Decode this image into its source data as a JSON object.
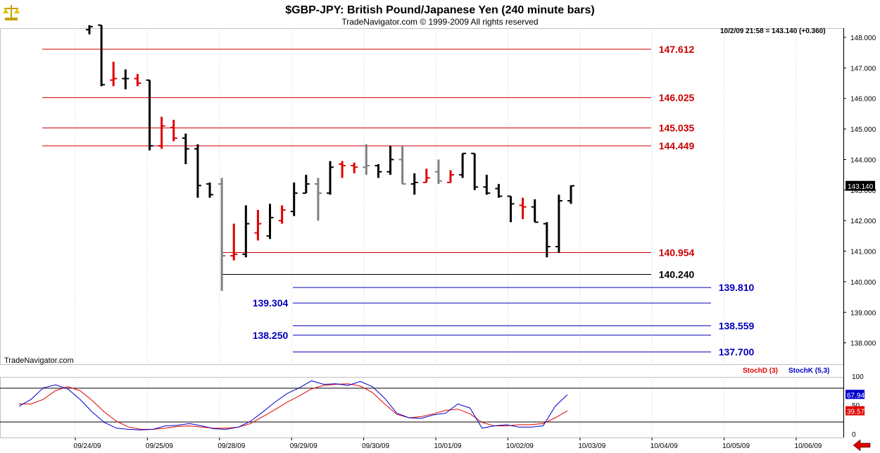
{
  "header": {
    "title": "$GBP-JPY:  British Pound/Japanese Yen  (240 minute bars)",
    "subtitle": "TradeNavigator.com © 1999-2009 All rights reserved",
    "last_info": "10/2/09 21:58 = 143.140 (+0.360)",
    "watermark": "TradeNavigator.com",
    "logo_icon": "scales-icon",
    "nav_icon": "left-arrow-icon"
  },
  "colors": {
    "bar_up": "#e00000",
    "bar_down": "#000000",
    "bar_gray": "#808080",
    "resistance": "#cc0000",
    "support": "#000000",
    "target": "#0000bb",
    "stochd": "#e00000",
    "stochk": "#0000cc"
  },
  "chart_data": [
    {
      "type": "ohlc",
      "title": "$GBP-JPY:  British Pound/Japanese Yen  (240 minute bars)",
      "x_ticks": [
        "09/24/09",
        "09/25/09",
        "09/28/09",
        "09/29/09",
        "09/30/09",
        "10/01/09",
        "10/02/09",
        "10/03/09",
        "10/04/09",
        "10/05/09",
        "10/06/09"
      ],
      "y_ticks": [
        "138.000",
        "139.000",
        "140.000",
        "141.000",
        "142.000",
        "143.000",
        "144.000",
        "145.000",
        "146.000",
        "147.000",
        "148.000"
      ],
      "ylim": [
        137.3,
        148.3
      ],
      "last_price": "143.140",
      "bars": [
        {
          "o": 148.25,
          "h": 148.4,
          "l": 148.1,
          "c": 148.35,
          "col": "down"
        },
        {
          "o": 148.4,
          "h": 148.4,
          "l": 146.4,
          "c": 146.45,
          "col": "down"
        },
        {
          "o": 146.6,
          "h": 147.2,
          "l": 146.4,
          "c": 146.65,
          "col": "up"
        },
        {
          "o": 146.65,
          "h": 146.95,
          "l": 146.3,
          "c": 146.65,
          "col": "down"
        },
        {
          "o": 146.65,
          "h": 146.8,
          "l": 146.4,
          "c": 146.5,
          "col": "up"
        },
        {
          "o": 146.6,
          "h": 146.6,
          "l": 144.3,
          "c": 144.45,
          "col": "down"
        },
        {
          "o": 144.45,
          "h": 145.4,
          "l": 144.35,
          "c": 145.1,
          "col": "up"
        },
        {
          "o": 145.05,
          "h": 145.3,
          "l": 144.6,
          "c": 144.7,
          "col": "up"
        },
        {
          "o": 144.7,
          "h": 144.85,
          "l": 143.85,
          "c": 144.35,
          "col": "down"
        },
        {
          "o": 144.35,
          "h": 144.5,
          "l": 142.75,
          "c": 143.15,
          "col": "down"
        },
        {
          "o": 143.2,
          "h": 143.25,
          "l": 142.75,
          "c": 142.85,
          "col": "down"
        },
        {
          "o": 143.2,
          "h": 143.4,
          "l": 139.7,
          "c": 140.85,
          "col": "gray"
        },
        {
          "o": 140.85,
          "h": 141.9,
          "l": 140.7,
          "c": 140.9,
          "col": "up"
        },
        {
          "o": 140.9,
          "h": 142.5,
          "l": 140.8,
          "c": 141.9,
          "col": "down"
        },
        {
          "o": 141.6,
          "h": 142.35,
          "l": 141.35,
          "c": 141.9,
          "col": "up"
        },
        {
          "o": 141.5,
          "h": 142.55,
          "l": 141.4,
          "c": 142.1,
          "col": "down"
        },
        {
          "o": 142.0,
          "h": 142.5,
          "l": 141.9,
          "c": 142.35,
          "col": "up"
        },
        {
          "o": 142.3,
          "h": 143.25,
          "l": 142.15,
          "c": 142.9,
          "col": "down"
        },
        {
          "o": 142.9,
          "h": 143.5,
          "l": 142.9,
          "c": 143.2,
          "col": "down"
        },
        {
          "o": 143.2,
          "h": 143.4,
          "l": 142.0,
          "c": 142.9,
          "col": "gray"
        },
        {
          "o": 142.9,
          "h": 143.95,
          "l": 142.85,
          "c": 143.75,
          "col": "down"
        },
        {
          "o": 143.85,
          "h": 143.95,
          "l": 143.4,
          "c": 143.8,
          "col": "up"
        },
        {
          "o": 143.8,
          "h": 143.9,
          "l": 143.55,
          "c": 143.75,
          "col": "up"
        },
        {
          "o": 143.75,
          "h": 144.5,
          "l": 143.5,
          "c": 143.8,
          "col": "gray"
        },
        {
          "o": 143.8,
          "h": 143.85,
          "l": 143.4,
          "c": 143.6,
          "col": "down"
        },
        {
          "o": 143.6,
          "h": 144.45,
          "l": 143.5,
          "c": 144.0,
          "col": "down"
        },
        {
          "o": 144.0,
          "h": 144.45,
          "l": 143.2,
          "c": 143.2,
          "col": "gray"
        },
        {
          "o": 143.2,
          "h": 143.55,
          "l": 142.85,
          "c": 143.25,
          "col": "down"
        },
        {
          "o": 143.25,
          "h": 143.7,
          "l": 143.25,
          "c": 143.4,
          "col": "up"
        },
        {
          "o": 143.6,
          "h": 144.0,
          "l": 143.2,
          "c": 143.3,
          "col": "gray"
        },
        {
          "o": 143.25,
          "h": 143.65,
          "l": 143.25,
          "c": 143.5,
          "col": "up"
        },
        {
          "o": 143.5,
          "h": 144.2,
          "l": 143.4,
          "c": 144.2,
          "col": "down"
        },
        {
          "o": 144.2,
          "h": 144.2,
          "l": 143.0,
          "c": 143.1,
          "col": "down"
        },
        {
          "o": 143.1,
          "h": 143.5,
          "l": 142.85,
          "c": 142.9,
          "col": "down"
        },
        {
          "o": 143.05,
          "h": 143.2,
          "l": 142.75,
          "c": 142.8,
          "col": "down"
        },
        {
          "o": 142.8,
          "h": 142.8,
          "l": 141.95,
          "c": 142.55,
          "col": "down"
        },
        {
          "o": 142.5,
          "h": 142.75,
          "l": 142.05,
          "c": 142.45,
          "col": "up"
        },
        {
          "o": 142.45,
          "h": 142.7,
          "l": 141.95,
          "c": 141.95,
          "col": "down"
        },
        {
          "o": 141.9,
          "h": 141.95,
          "l": 140.8,
          "c": 141.15,
          "col": "down"
        },
        {
          "o": 141.15,
          "h": 142.85,
          "l": 140.95,
          "c": 142.65,
          "col": "down"
        },
        {
          "o": 142.65,
          "h": 143.15,
          "l": 142.55,
          "c": 143.14,
          "col": "down"
        }
      ],
      "levels": [
        {
          "value": 147.612,
          "label": "147.612",
          "kind": "resistance",
          "span": "full",
          "label_side": "mid"
        },
        {
          "value": 146.025,
          "label": "146.025",
          "kind": "resistance",
          "span": "full",
          "label_side": "mid"
        },
        {
          "value": 145.035,
          "label": "145.035",
          "kind": "resistance",
          "span": "full",
          "label_side": "mid"
        },
        {
          "value": 144.449,
          "label": "144.449",
          "kind": "resistance",
          "span": "full",
          "label_side": "mid"
        },
        {
          "value": 140.954,
          "label": "140.954",
          "kind": "resistance",
          "span": "from-low",
          "label_side": "mid"
        },
        {
          "value": 140.24,
          "label": "140.240",
          "kind": "support",
          "span": "from-low",
          "label_side": "mid"
        },
        {
          "value": 139.81,
          "label": "139.810",
          "kind": "target",
          "span": "right",
          "label_side": "right"
        },
        {
          "value": 139.304,
          "label": "139.304",
          "kind": "target",
          "span": "right",
          "label_side": "left"
        },
        {
          "value": 138.559,
          "label": "138.559",
          "kind": "target",
          "span": "right",
          "label_side": "right"
        },
        {
          "value": 138.25,
          "label": "138.250",
          "kind": "target",
          "span": "right",
          "label_side": "left"
        },
        {
          "value": 137.7,
          "label": "137.700",
          "kind": "target",
          "span": "right",
          "label_side": "right"
        }
      ]
    },
    {
      "type": "line",
      "title": "",
      "ylim": [
        0,
        100
      ],
      "y_ticks": [
        "100",
        "50",
        "0"
      ],
      "series": [
        {
          "name": "StochD (3)",
          "color": "#e00000",
          "values": [
            52,
            52,
            60,
            75,
            82,
            75,
            58,
            38,
            22,
            12,
            8,
            8,
            10,
            13,
            14,
            12,
            10,
            10,
            12,
            18,
            30,
            42,
            55,
            66,
            78,
            84,
            86,
            87,
            83,
            72,
            52,
            34,
            28,
            30,
            35,
            41,
            43,
            35,
            20,
            14,
            14,
            16,
            16,
            18,
            28,
            40
          ]
        },
        {
          "name": "StochK (5,3)",
          "color": "#0000cc",
          "values": [
            48,
            60,
            80,
            85,
            78,
            60,
            38,
            20,
            10,
            8,
            7,
            8,
            14,
            15,
            18,
            14,
            9,
            8,
            12,
            22,
            38,
            55,
            70,
            80,
            92,
            86,
            87,
            84,
            91,
            82,
            62,
            36,
            28,
            27,
            33,
            36,
            52,
            45,
            10,
            14,
            16,
            12,
            12,
            14,
            48,
            68
          ]
        }
      ],
      "last_values": {
        "k": "67.94",
        "d": "39.57"
      }
    }
  ]
}
